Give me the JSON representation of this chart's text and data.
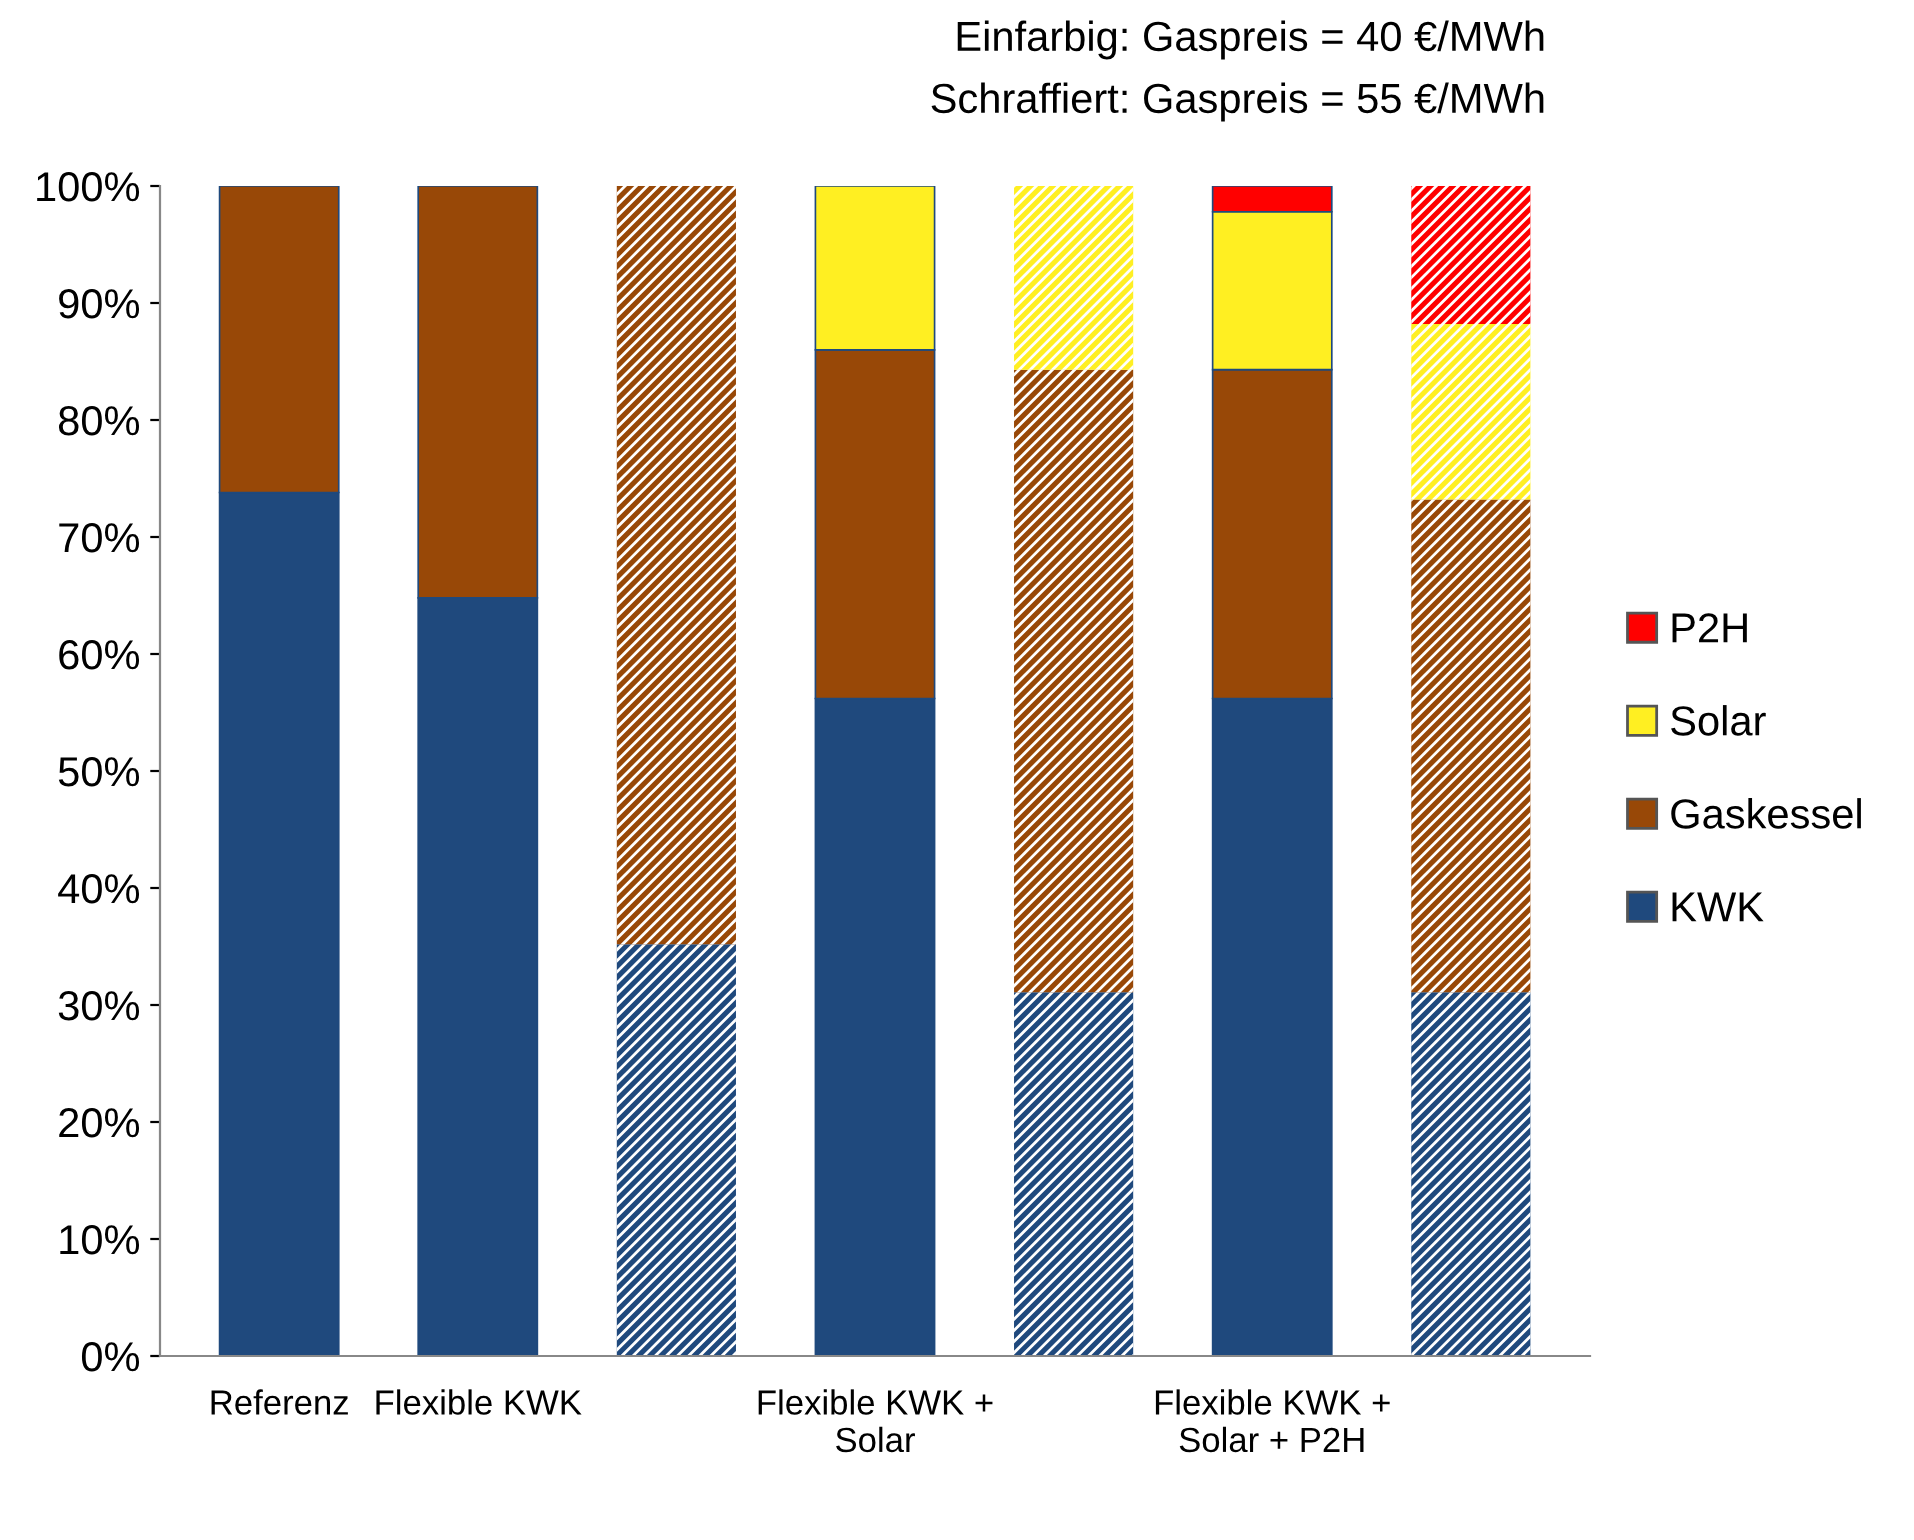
{
  "chart_data": {
    "type": "bar",
    "stacked": true,
    "title": "Einfarbig: Gaspreis = 40 €/MWh",
    "subtitle": "Schraffiert: Gaspreis = 55 €/MWh",
    "categories": [
      "Referenz",
      "Flexible KWK",
      null,
      "Flexible KWK +\nSolar",
      null,
      "Flexible KWK +\nSolar + P2H",
      null
    ],
    "series": [
      {
        "name": "KWK",
        "color": "#1f497d",
        "values": [
          73.8,
          64.8,
          null,
          56.2,
          null,
          56.2,
          null
        ]
      },
      {
        "name": "Gaskessel",
        "color": "#984807",
        "values": [
          26.2,
          35.2,
          null,
          29.8,
          null,
          28.1,
          null
        ]
      },
      {
        "name": "Solar",
        "color": "#ffef22",
        "values": [
          null,
          null,
          null,
          14.0,
          null,
          13.5,
          null
        ]
      },
      {
        "name": "P2H",
        "color": "#ff0000",
        "values": [
          null,
          null,
          null,
          null,
          null,
          2.2,
          null
        ]
      },
      {
        "color": "#1f497d",
        "values": [
          null,
          null,
          35.2,
          null,
          31.1,
          null,
          31.1
        ]
      },
      {
        "color": "#984807",
        "values": [
          null,
          null,
          64.8,
          null,
          53.2,
          null,
          42.1
        ]
      },
      {
        "color": "#ffef22",
        "values": [
          null,
          null,
          null,
          null,
          15.7,
          null,
          15.0
        ]
      },
      {
        "color": "#ff0000",
        "values": [
          null,
          null,
          null,
          null,
          null,
          null,
          11.8
        ]
      }
    ],
    "ylim": [
      0,
      100
    ],
    "yticks": [
      {
        "value": 0,
        "label": "0%"
      },
      {
        "value": 10,
        "label": "10%"
      },
      {
        "value": 20,
        "label": "20%"
      },
      {
        "value": 30,
        "label": "30%"
      },
      {
        "value": 40,
        "label": "40%"
      },
      {
        "value": 50,
        "label": "50%"
      },
      {
        "value": 60,
        "label": "60%"
      },
      {
        "value": 70,
        "label": "70%"
      },
      {
        "value": 80,
        "label": "80%"
      },
      {
        "value": 90,
        "label": "90%"
      },
      {
        "value": 100,
        "label": "100%"
      }
    ],
    "grid": false,
    "legend": "right"
  }
}
